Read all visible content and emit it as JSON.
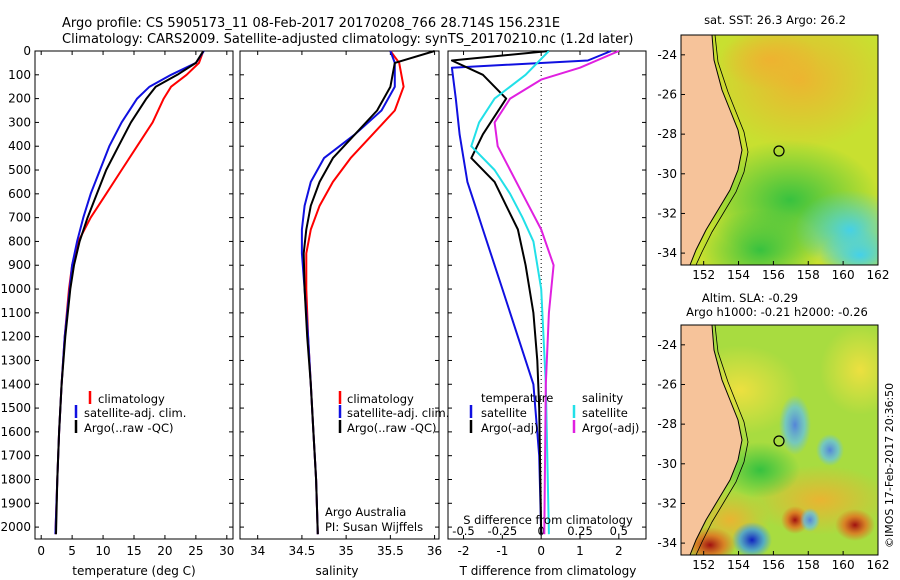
{
  "header": {
    "title_line1": "Argo profile: CS 5905173_11 08-Feb-2017 20170208_766 28.714S 156.231E",
    "title_line2": "Climatology: CARS2009. Satellite-adjusted climatology: synTS_20170210.nc (1.2d later)"
  },
  "colors": {
    "climatology": "#ff0000",
    "satellite": "#1010e0",
    "argo": "#000000",
    "sal_satellite": "#22e0e8",
    "sal_argo": "#e020e0",
    "land": "#f6c39a"
  },
  "chart_data": [
    {
      "type": "line",
      "name": "temperature",
      "xlabel": "temperature (deg C)",
      "xlim": [
        -1,
        31
      ],
      "ylim": [
        0,
        2050
      ],
      "xticks": [
        0,
        5,
        10,
        15,
        20,
        25,
        30
      ],
      "yticks": [
        0,
        100,
        200,
        300,
        400,
        500,
        600,
        700,
        800,
        900,
        1000,
        1100,
        1200,
        1300,
        1400,
        1500,
        1600,
        1700,
        1800,
        1900,
        2000
      ],
      "legend": [
        "climatology",
        "satellite-adj. clim.",
        "Argo(..raw -QC)"
      ],
      "series": [
        {
          "name": "climatology",
          "x": [
            26.2,
            25.5,
            23.5,
            21.0,
            19.8,
            18.0,
            15.5,
            13.0,
            10.5,
            8.0,
            6.0,
            5.0,
            4.5,
            3.8,
            3.3,
            2.9,
            2.6,
            2.3
          ],
          "depth": [
            0,
            50,
            100,
            150,
            200,
            300,
            400,
            500,
            600,
            700,
            800,
            900,
            1000,
            1200,
            1400,
            1600,
            1800,
            2030
          ]
        },
        {
          "name": "satellite-adj. clim.",
          "x": [
            26.3,
            25.0,
            21.0,
            17.5,
            15.5,
            13.0,
            11.0,
            9.5,
            8.0,
            6.8,
            5.8,
            5.0,
            4.6,
            3.8,
            3.3,
            2.9,
            2.6,
            2.3
          ],
          "depth": [
            0,
            50,
            100,
            150,
            200,
            300,
            400,
            500,
            600,
            700,
            800,
            900,
            1000,
            1200,
            1400,
            1600,
            1800,
            2030
          ]
        },
        {
          "name": "Argo(..raw -QC)",
          "x": [
            26.2,
            25.0,
            22.0,
            18.5,
            17.0,
            14.5,
            12.5,
            10.5,
            9.0,
            7.5,
            6.2,
            5.3,
            4.7,
            3.9,
            3.3,
            2.9,
            2.6,
            2.4
          ],
          "depth": [
            0,
            50,
            100,
            150,
            200,
            300,
            400,
            500,
            600,
            700,
            800,
            900,
            1000,
            1200,
            1400,
            1600,
            1800,
            2030
          ]
        }
      ]
    },
    {
      "type": "line",
      "name": "salinity",
      "xlabel": "salinity",
      "xlim": [
        33.8,
        36.05
      ],
      "ylim": [
        0,
        2050
      ],
      "xticks": [
        34,
        34.5,
        35,
        35.5,
        36
      ],
      "legend": [
        "climatology",
        "satellite-adj. clim.",
        "Argo(..raw -QC)"
      ],
      "annotation": [
        "Argo Australia",
        "PI: Susan Wijffels"
      ],
      "series": [
        {
          "name": "climatology",
          "x": [
            35.5,
            35.6,
            35.65,
            35.55,
            35.3,
            35.05,
            34.85,
            34.7,
            34.6,
            34.55,
            34.55,
            34.57,
            34.6,
            34.63,
            34.66,
            34.68
          ],
          "depth": [
            0,
            50,
            150,
            250,
            350,
            450,
            550,
            650,
            750,
            850,
            1000,
            1200,
            1400,
            1600,
            1800,
            2030
          ]
        },
        {
          "name": "satellite-adj. clim.",
          "x": [
            35.5,
            35.55,
            35.55,
            35.4,
            35.1,
            34.75,
            34.6,
            34.53,
            34.5,
            34.5,
            34.53,
            34.57,
            34.6,
            34.63,
            34.66,
            34.68
          ],
          "depth": [
            0,
            50,
            150,
            250,
            350,
            450,
            550,
            650,
            750,
            850,
            1000,
            1200,
            1400,
            1600,
            1800,
            2030
          ]
        },
        {
          "name": "Argo(..raw -QC)",
          "x": [
            36.0,
            35.55,
            35.5,
            35.35,
            35.1,
            34.85,
            34.7,
            34.6,
            34.55,
            34.52,
            34.53,
            34.56,
            34.6,
            34.63,
            34.66,
            34.68
          ],
          "depth": [
            0,
            50,
            150,
            250,
            350,
            450,
            550,
            650,
            750,
            850,
            1000,
            1200,
            1400,
            1600,
            1800,
            2030
          ]
        }
      ]
    },
    {
      "type": "line",
      "name": "difference from climatology",
      "xlabel": "T difference from climatology",
      "xlabel_top": "S difference from climatology",
      "xlim": [
        -2.4,
        2.7
      ],
      "ylim": [
        0,
        2050
      ],
      "xticks": [
        -2,
        -1,
        0,
        1,
        2
      ],
      "sticks": [
        -0.5,
        -0.25,
        0,
        0.25,
        0.5
      ],
      "stick_labels": [
        "-0.5",
        "-0.25",
        "0",
        "0.25",
        "0.5"
      ],
      "legend_temperature": [
        "temperature",
        "satellite",
        "Argo(-adj)"
      ],
      "legend_salinity": [
        "salinity",
        "satellite",
        "Argo(-adj)"
      ],
      "series": [
        {
          "name": "T satellite",
          "x": [
            1.8,
            1.2,
            -2.3,
            -2.2,
            -2.1,
            -2.0,
            -1.9,
            -1.7,
            -1.5,
            -1.3,
            -1.0,
            -0.6,
            -0.2,
            -0.05,
            0.0
          ],
          "depth": [
            0,
            40,
            70,
            200,
            350,
            450,
            550,
            650,
            750,
            850,
            1000,
            1200,
            1400,
            1700,
            2030
          ]
        },
        {
          "name": "T Argo(-adj)",
          "x": [
            0.2,
            -2.3,
            -1.5,
            -0.9,
            -1.5,
            -1.8,
            -1.2,
            -0.9,
            -0.6,
            -0.4,
            -0.2,
            -0.1,
            -0.05,
            0.0
          ],
          "depth": [
            0,
            40,
            100,
            200,
            350,
            450,
            550,
            650,
            750,
            900,
            1100,
            1300,
            1500,
            2030
          ]
        },
        {
          "name": "S satellite",
          "x": [
            0.05,
            -0.1,
            -0.3,
            -0.4,
            -0.45,
            -0.3,
            -0.2,
            -0.12,
            -0.05,
            0.0,
            0.03,
            0.05
          ],
          "depth": [
            0,
            100,
            200,
            300,
            400,
            500,
            600,
            700,
            800,
            1000,
            1400,
            2030
          ]
        },
        {
          "name": "S Argo(-adj)",
          "x": [
            0.5,
            0.25,
            0.0,
            -0.2,
            -0.3,
            -0.28,
            -0.2,
            -0.12,
            0.0,
            0.08,
            0.05,
            0.03,
            0.02
          ],
          "depth": [
            0,
            70,
            120,
            200,
            300,
            400,
            500,
            600,
            750,
            900,
            1100,
            1400,
            2030
          ]
        }
      ]
    }
  ],
  "maps": {
    "sst": {
      "title": "sat. SST: 26.3 Argo: 26.2",
      "xticks": [
        "152",
        "154",
        "156",
        "158",
        "160",
        "162"
      ],
      "yticks": [
        "-24",
        "-26",
        "-28",
        "-30",
        "-32",
        "-34"
      ]
    },
    "sla": {
      "title_line1": "Altim. SLA: -0.29",
      "title_line2": "Argo h1000: -0.21 h2000: -0.26",
      "xticks": [
        "152",
        "154",
        "156",
        "158",
        "160",
        "162"
      ],
      "yticks": [
        "-24",
        "-26",
        "-28",
        "-30",
        "-32",
        "-34"
      ]
    }
  },
  "footer": {
    "credit": "©IMOS 17-Feb-2017 20:36:50"
  }
}
